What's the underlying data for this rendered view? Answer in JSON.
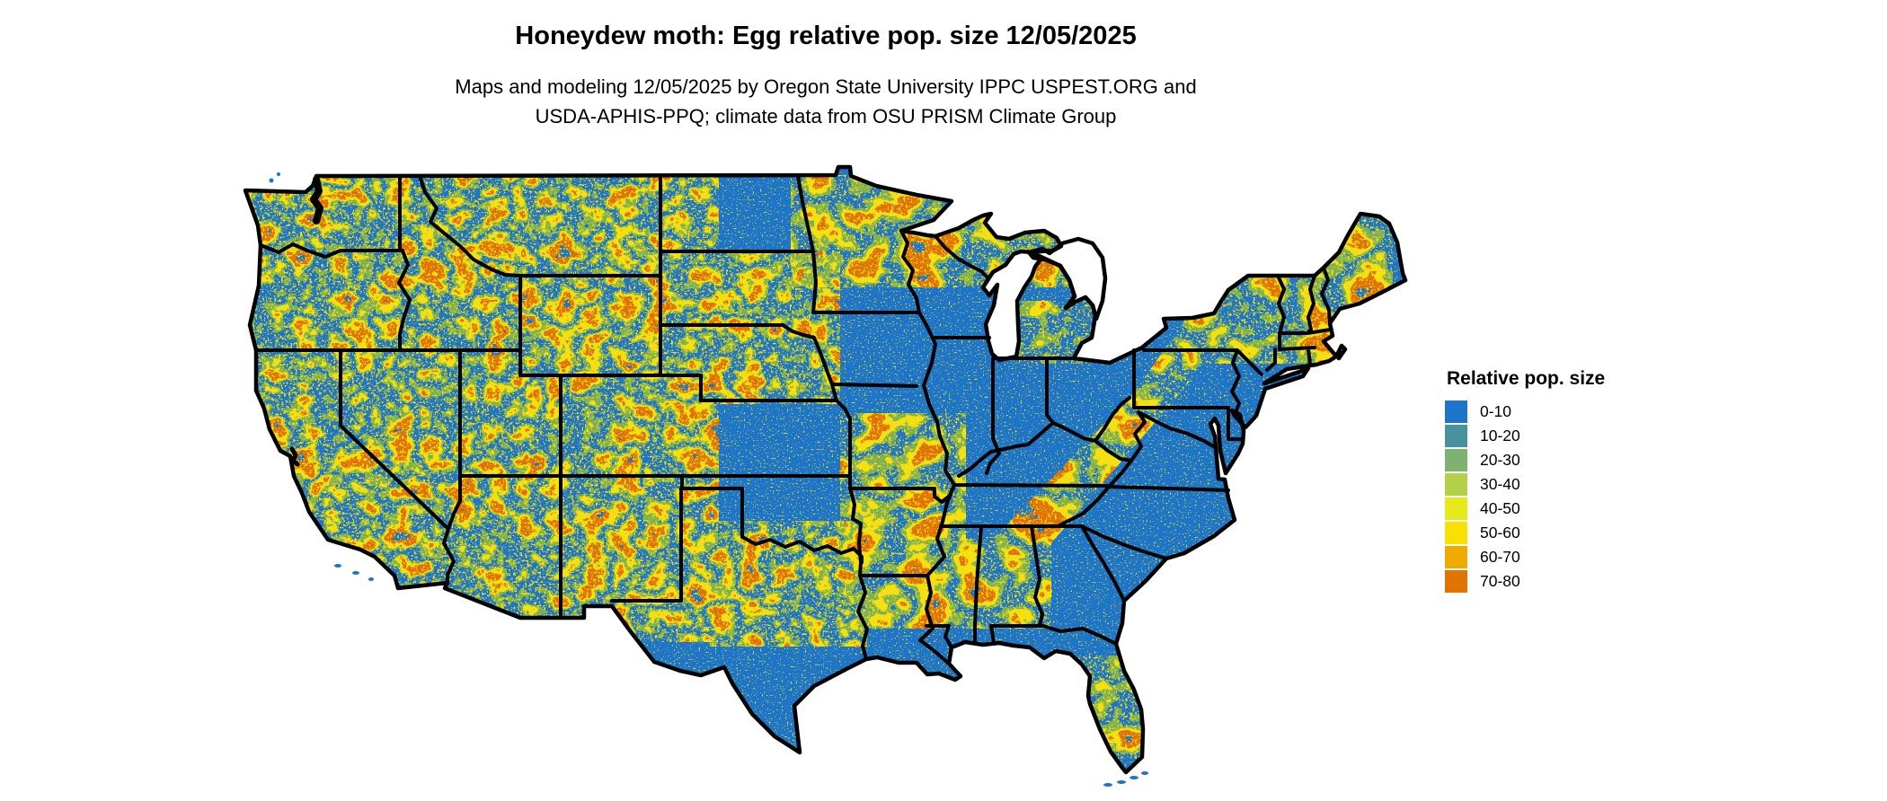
{
  "figure": {
    "title": "Honeydew moth: Egg relative pop. size 12/05/2025",
    "subtitle_line1": "Maps and modeling 12/05/2025 by Oregon State University IPPC USPEST.ORG and",
    "subtitle_line2": "USDA-APHIS-PPQ; climate data from OSU PRISM Climate Group"
  },
  "legend": {
    "title": "Relative pop. size",
    "items": [
      {
        "label": "0-10",
        "color": "#1c75c9"
      },
      {
        "label": "10-20",
        "color": "#4a91a0"
      },
      {
        "label": "20-30",
        "color": "#7eb36f"
      },
      {
        "label": "30-40",
        "color": "#b5cf48"
      },
      {
        "label": "40-50",
        "color": "#e6ea1a"
      },
      {
        "label": "50-60",
        "color": "#f9e000"
      },
      {
        "label": "60-70",
        "color": "#efab02"
      },
      {
        "label": "70-80",
        "color": "#e27201"
      }
    ]
  },
  "map": {
    "depicts": "continental-united-states",
    "base_color": "#1c75c9",
    "border_color": "#000000",
    "water_color": "#ffffff",
    "hotspot_palette": {
      "green_fringe": "#7db054",
      "yellow": "#f5e012",
      "orange": "#e07003"
    }
  }
}
